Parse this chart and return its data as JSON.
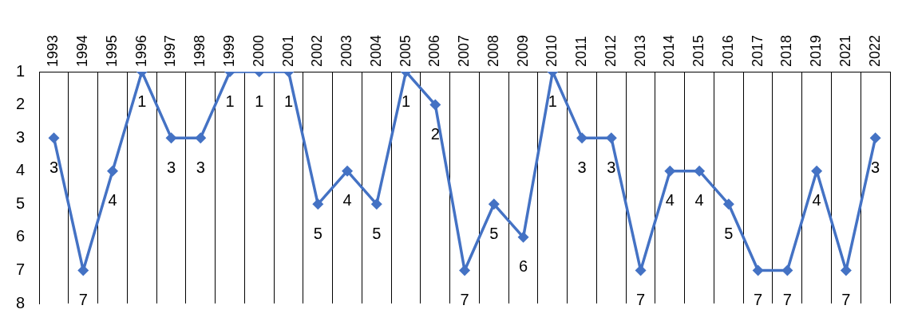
{
  "chart_data": {
    "type": "line",
    "categories": [
      "1993",
      "1994",
      "1995",
      "1996",
      "1997",
      "1998",
      "1999",
      "2000",
      "2001",
      "2002",
      "2003",
      "2004",
      "2005",
      "2006",
      "2007",
      "2008",
      "2009",
      "2010",
      "2011",
      "2012",
      "2013",
      "2014",
      "2015",
      "2016",
      "2017",
      "2018",
      "2019",
      "2021",
      "2022"
    ],
    "series": [
      {
        "color": "#4472c4",
        "values": [
          3,
          7,
          4,
          1,
          3,
          3,
          1,
          1,
          1,
          5,
          4,
          5,
          1,
          2,
          7,
          5,
          6,
          1,
          3,
          3,
          7,
          4,
          4,
          5,
          7,
          7,
          4,
          7,
          3
        ]
      }
    ],
    "ylim": [
      8,
      1
    ],
    "yticks": [
      1,
      2,
      3,
      4,
      5,
      6,
      7,
      8
    ],
    "grid": "x",
    "legend": false,
    "marker": "diamond",
    "line_style": "solid",
    "data_labels": true
  }
}
